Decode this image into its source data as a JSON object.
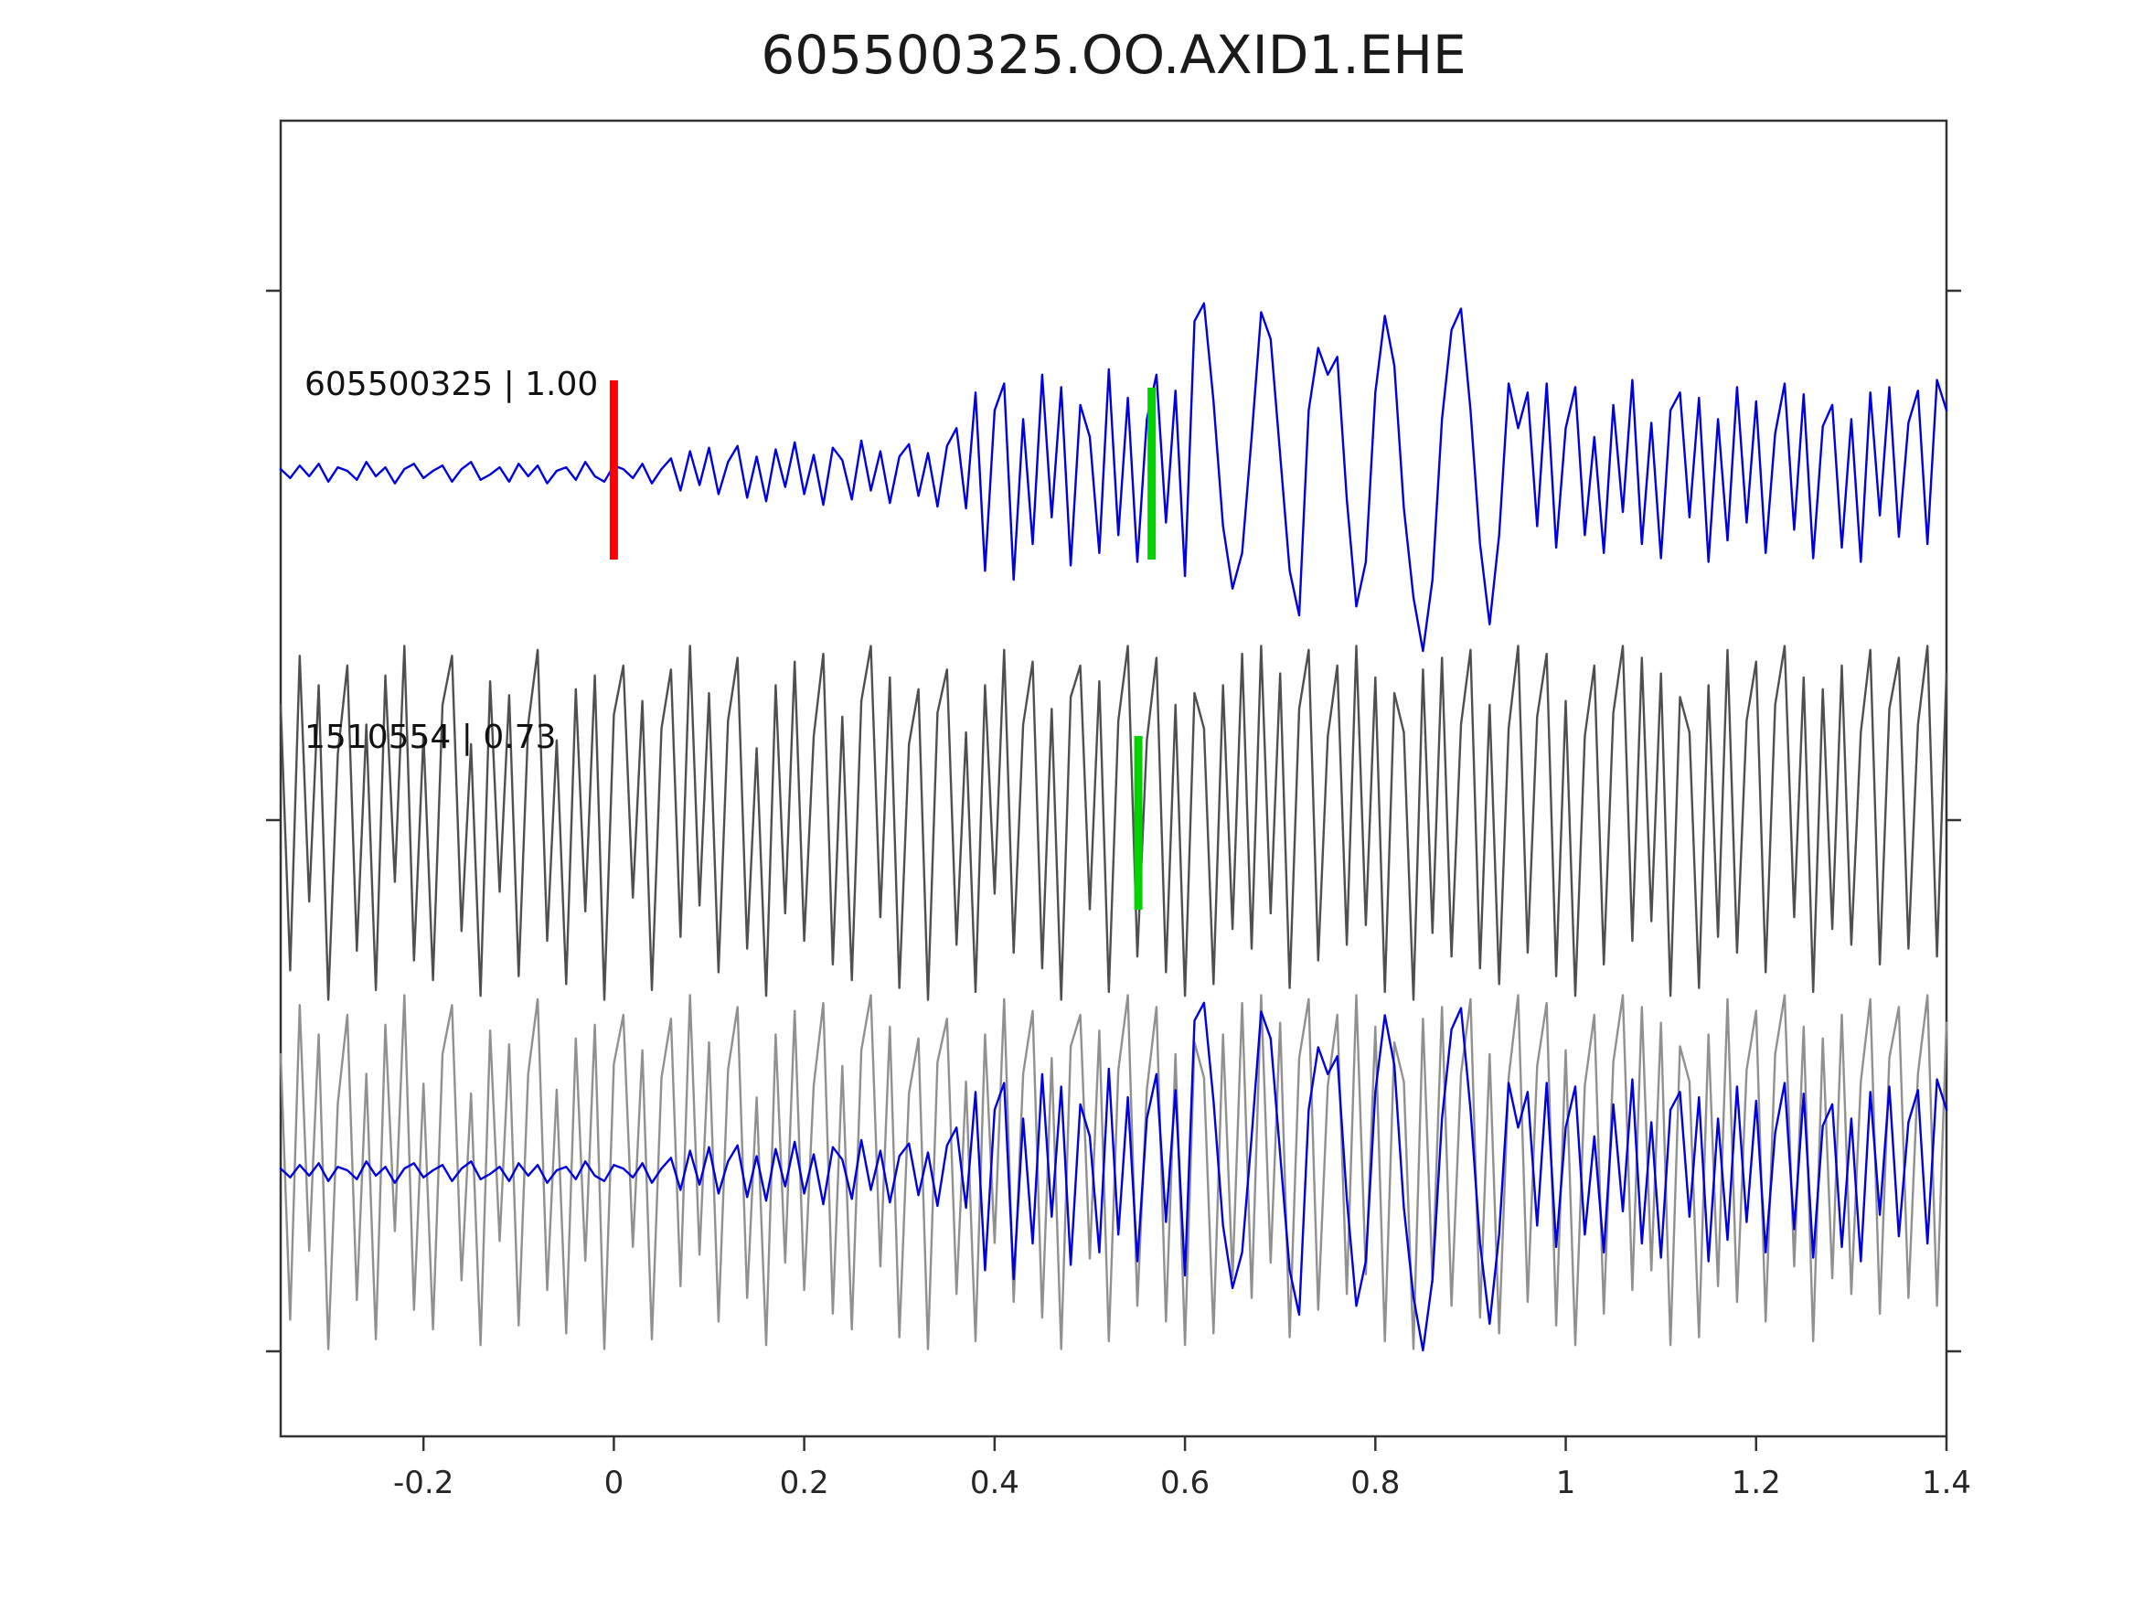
{
  "title": "605500325.OO.AXID1.EHE",
  "chart_data": {
    "type": "line",
    "title": "605500325.OO.AXID1.EHE",
    "x_range": [
      -0.35,
      1.4
    ],
    "x_ticks": [
      -0.2,
      0,
      0.2,
      0.4,
      0.6,
      0.8,
      1,
      1.2,
      1.4
    ],
    "x_tick_labels": [
      "-0.2",
      "0",
      "0.2",
      "0.4",
      "0.6",
      "0.8",
      "1",
      "1.2",
      "1.4"
    ],
    "grid": false,
    "legend": "none",
    "colors": {
      "detection_trace": "#0000e0",
      "template_trace": "#4f4f4f",
      "overlay_template": "#909090",
      "origin_marker": "#ff0000",
      "pick_marker": "#00d400"
    },
    "rows": [
      {
        "label": "605500325 | 1.00",
        "series": "blue",
        "color": "#0000e0",
        "center": 517,
        "amp": 195
      },
      {
        "label": "1510554 | 0.73",
        "series": "gray",
        "color": "#4f4f4f",
        "center": 900,
        "amp": 215
      },
      {
        "label": "",
        "series": "gray",
        "color": "#909090",
        "center": 1282,
        "amp": 215
      },
      {
        "label": "",
        "series": "blue",
        "color": "#0000e0",
        "center": 1282,
        "amp": 195
      }
    ],
    "markers": [
      {
        "x": 0.0,
        "color": "#ff0000",
        "y_center": 514,
        "half_height": 98
      },
      {
        "x": 0.565,
        "color": "#00d400",
        "y_center": 518,
        "half_height": 94
      },
      {
        "x": 0.551,
        "color": "#00d400",
        "y_center": 900,
        "half_height": 95
      }
    ],
    "series": {
      "blue": [
        0.02,
        -0.03,
        0.04,
        -0.02,
        0.05,
        -0.05,
        0.03,
        0.01,
        -0.04,
        0.06,
        -0.02,
        0.03,
        -0.06,
        0.02,
        0.05,
        -0.03,
        0.01,
        0.04,
        -0.05,
        0.02,
        0.06,
        -0.04,
        -0.01,
        0.03,
        -0.05,
        0.05,
        -0.02,
        0.04,
        -0.06,
        0.01,
        0.03,
        -0.04,
        0.06,
        -0.02,
        -0.05,
        0.04,
        0.02,
        -0.03,
        0.05,
        -0.06,
        0.02,
        0.08,
        -0.1,
        0.12,
        -0.07,
        0.14,
        -0.12,
        0.06,
        0.15,
        -0.14,
        0.09,
        -0.16,
        0.13,
        -0.08,
        0.17,
        -0.12,
        0.1,
        -0.18,
        0.14,
        0.07,
        -0.15,
        0.18,
        -0.1,
        0.12,
        -0.17,
        0.09,
        0.16,
        -0.13,
        0.11,
        -0.19,
        0.15,
        0.25,
        -0.2,
        0.45,
        -0.55,
        0.35,
        0.5,
        -0.6,
        0.3,
        -0.4,
        0.55,
        -0.25,
        0.48,
        -0.52,
        0.38,
        0.2,
        -0.45,
        0.58,
        -0.35,
        0.42,
        -0.5,
        0.3,
        0.55,
        -0.28,
        0.46,
        -0.58,
        0.85,
        0.95,
        0.4,
        -0.3,
        -0.65,
        -0.45,
        0.2,
        0.9,
        0.75,
        0.1,
        -0.55,
        -0.8,
        0.35,
        0.7,
        0.55,
        0.65,
        -0.15,
        -0.75,
        -0.5,
        0.45,
        0.88,
        0.6,
        -0.2,
        -0.7,
        -1.0,
        -0.6,
        0.3,
        0.8,
        0.92,
        0.35,
        -0.4,
        -0.85,
        -0.35,
        0.5,
        0.25,
        0.45,
        -0.3,
        0.5,
        -0.42,
        0.25,
        0.48,
        -0.35,
        0.2,
        -0.45,
        0.38,
        -0.22,
        0.52,
        -0.4,
        0.28,
        -0.48,
        0.35,
        0.45,
        -0.25,
        0.42,
        -0.5,
        0.3,
        -0.38,
        0.48,
        -0.28,
        0.4,
        -0.45,
        0.22,
        0.5,
        -0.32,
        0.44,
        -0.48,
        0.26,
        0.38,
        -0.42,
        0.3,
        -0.5,
        0.45,
        -0.24,
        0.48,
        -0.36,
        0.28,
        0.46,
        -0.4,
        0.52,
        0.35
      ],
      "gray": [
        0.6,
        -0.75,
        0.85,
        -0.4,
        0.7,
        -0.9,
        0.35,
        0.8,
        -0.65,
        0.5,
        -0.85,
        0.75,
        -0.3,
        0.9,
        -0.7,
        0.45,
        -0.8,
        0.6,
        0.85,
        -0.55,
        0.4,
        -0.88,
        0.72,
        -0.35,
        0.65,
        -0.78,
        0.5,
        0.88,
        -0.6,
        0.42,
        -0.82,
        0.68,
        -0.45,
        0.75,
        -0.9,
        0.55,
        0.8,
        -0.38,
        0.62,
        -0.85,
        0.48,
        0.78,
        -0.58,
        0.9,
        -0.42,
        0.66,
        -0.76,
        0.52,
        0.84,
        -0.64,
        0.38,
        -0.88,
        0.7,
        -0.46,
        0.82,
        -0.6,
        0.44,
        0.86,
        -0.72,
        0.54,
        -0.8,
        0.62,
        0.9,
        -0.48,
        0.74,
        -0.84,
        0.4,
        0.68,
        -0.9,
        0.56,
        0.78,
        -0.62,
        0.46,
        -0.86,
        0.7,
        -0.36,
        0.88,
        -0.66,
        0.5,
        0.82,
        -0.74,
        0.58,
        -0.9,
        0.64,
        0.8,
        -0.44,
        0.72,
        -0.86,
        0.52,
        0.9,
        -0.68,
        0.42,
        0.84,
        -0.76,
        0.6,
        -0.88,
        0.66,
        0.48,
        -0.82,
        0.7,
        -0.54,
        0.86,
        -0.64,
        0.9,
        -0.46,
        0.76,
        -0.84,
        0.58,
        0.88,
        -0.7,
        0.44,
        0.8,
        -0.62,
        0.9,
        -0.52,
        0.74,
        -0.86,
        0.66,
        0.46,
        -0.9,
        0.78,
        -0.56,
        0.84,
        -0.68,
        0.5,
        0.88,
        -0.74,
        0.6,
        -0.82,
        0.48,
        0.9,
        -0.66,
        0.54,
        0.86,
        -0.78,
        0.62,
        -0.88,
        0.44,
        0.8,
        -0.72,
        0.56,
        0.9,
        -0.6,
        0.84,
        -0.5,
        0.76,
        -0.88,
        0.64,
        0.46,
        -0.84,
        0.7,
        -0.58,
        0.88,
        -0.66,
        0.52,
        0.82,
        -0.76,
        0.6,
        0.9,
        -0.48,
        0.74,
        -0.86,
        0.68,
        -0.54,
        0.8,
        -0.62,
        0.46,
        0.88,
        -0.72,
        0.58,
        0.84,
        -0.64,
        0.5,
        0.9,
        -0.68,
        0.76
      ]
    }
  }
}
